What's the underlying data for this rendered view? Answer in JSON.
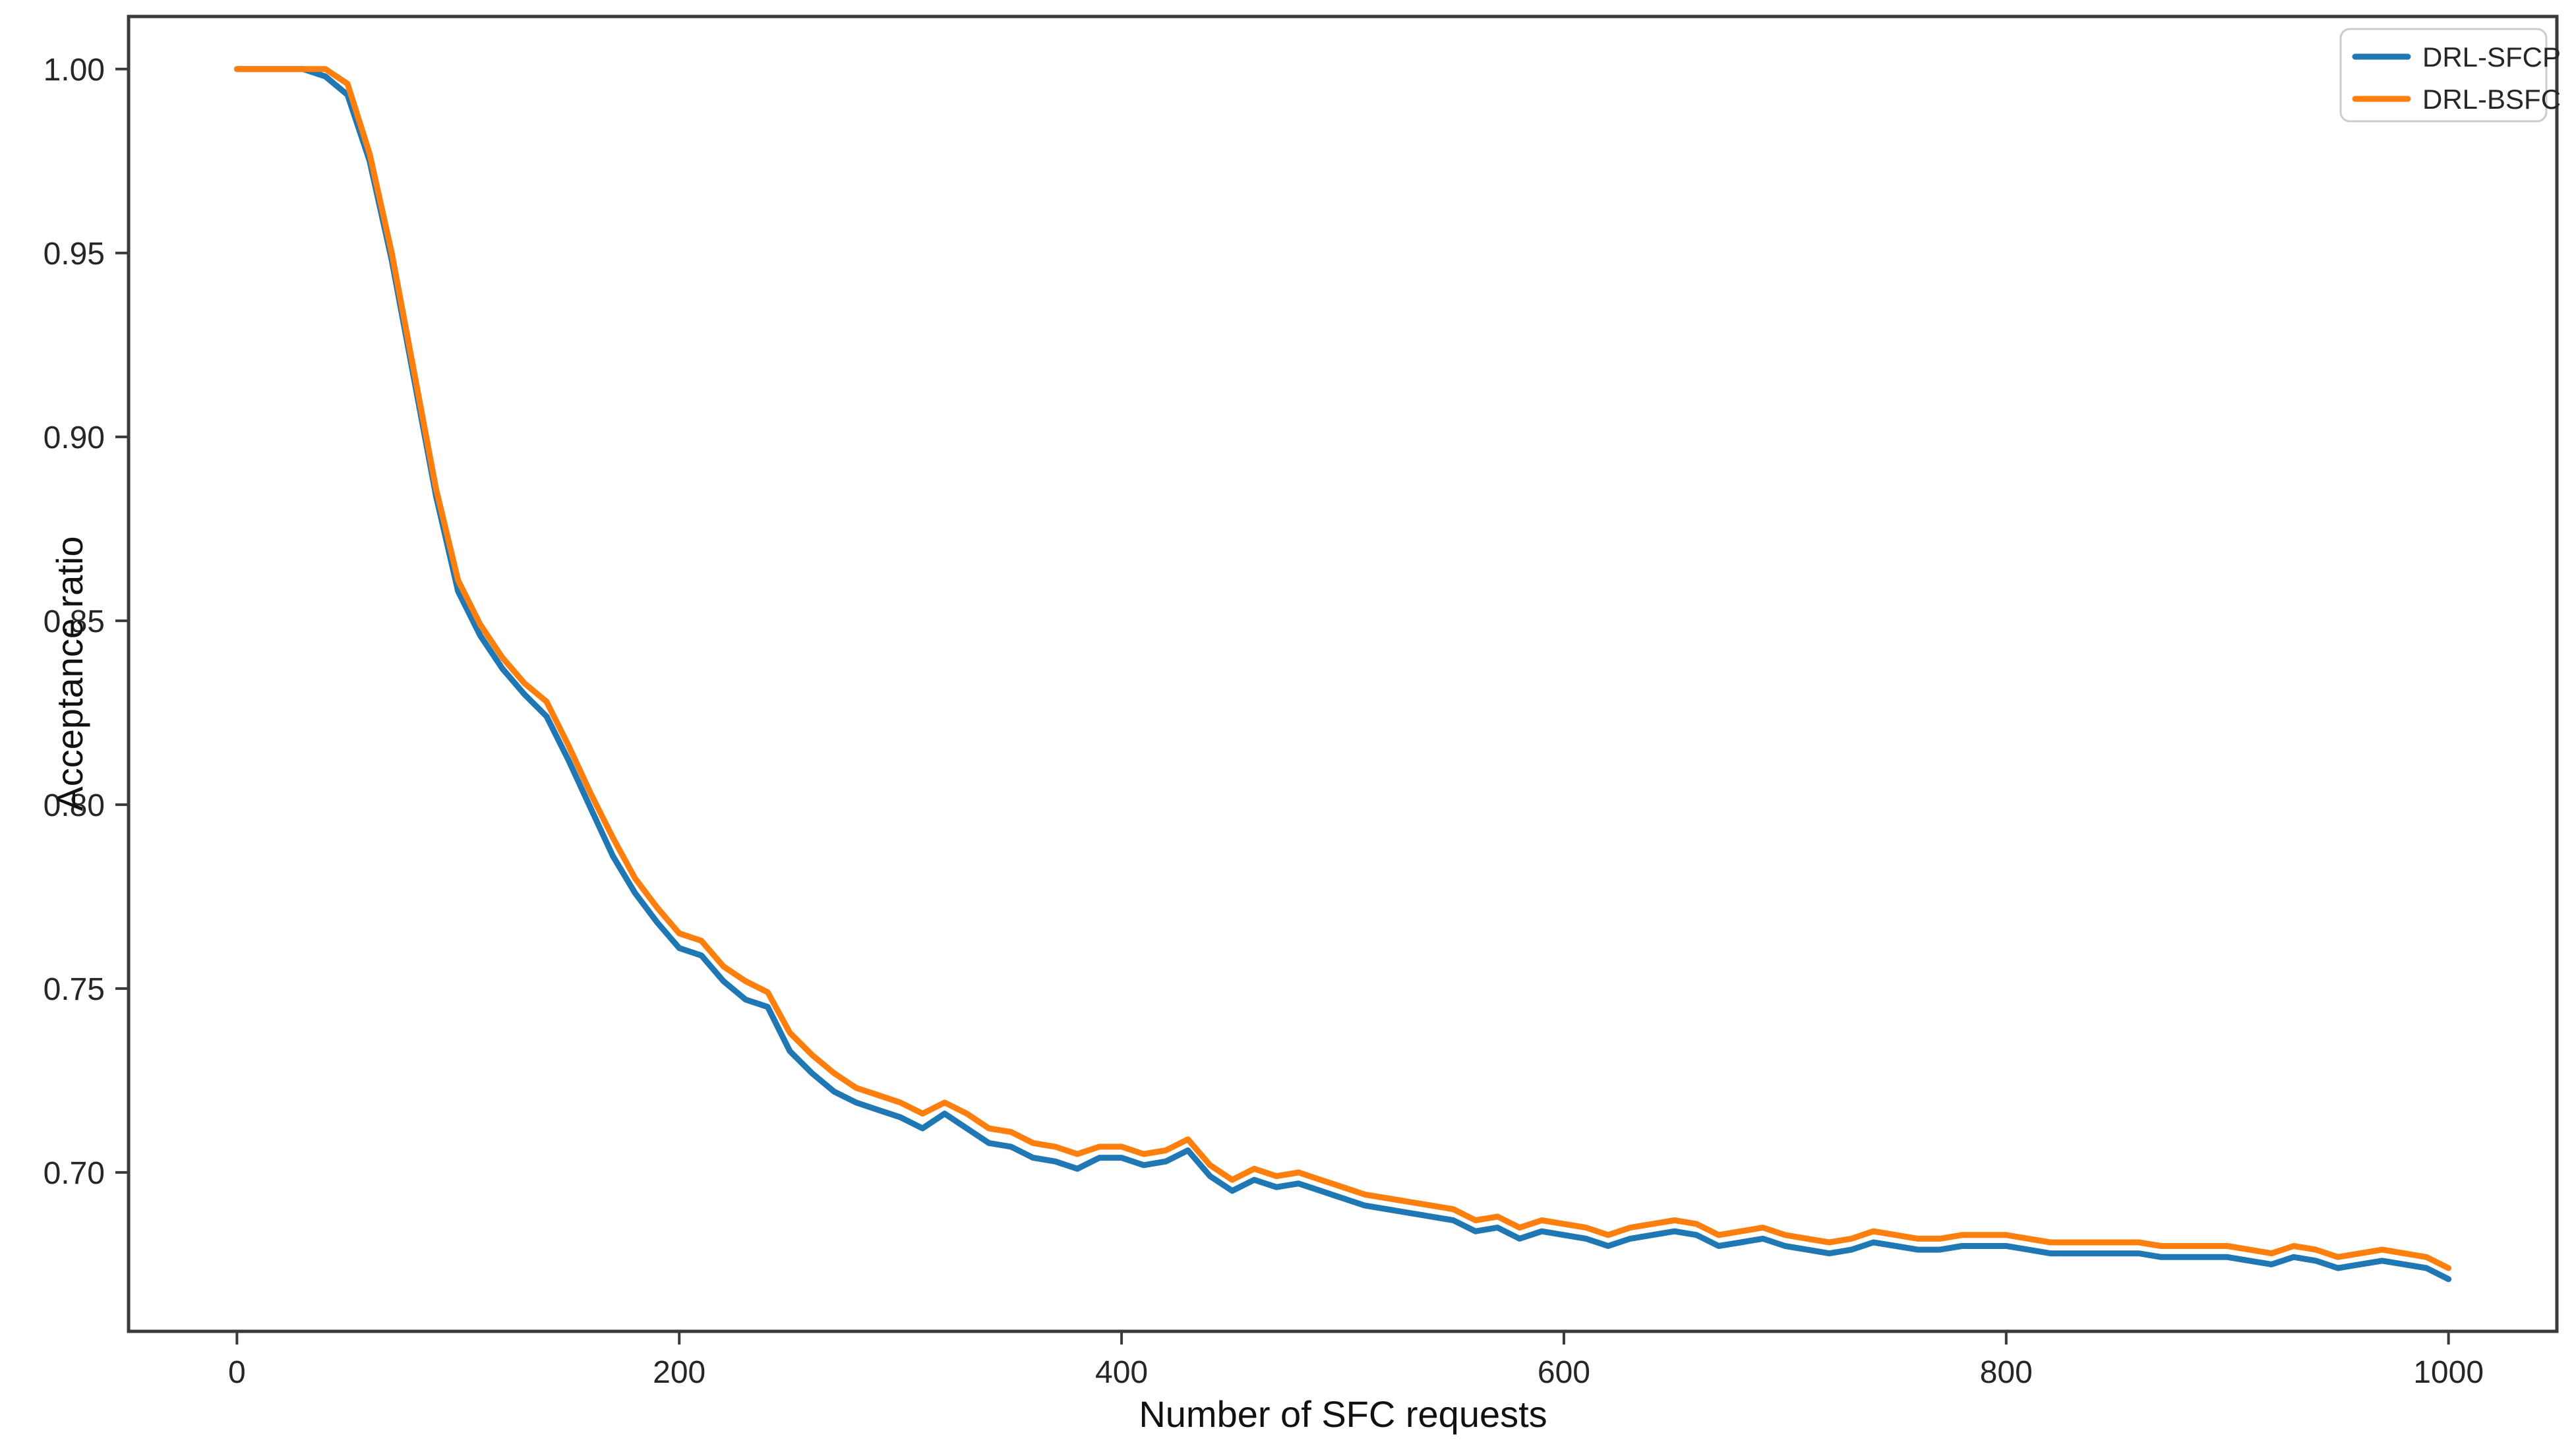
{
  "chart_data": {
    "type": "line",
    "title": "",
    "xlabel": "Number of SFC requests",
    "ylabel": "Acceptance ratio",
    "xlim": [
      -49,
      1049
    ],
    "ylim": [
      0.6568,
      1.0143
    ],
    "x_ticks": [
      0,
      200,
      400,
      600,
      800,
      1000
    ],
    "x_tick_labels": [
      "0",
      "200",
      "400",
      "600",
      "800",
      "1000"
    ],
    "y_ticks": [
      1.0,
      0.95,
      0.9,
      0.85,
      0.8,
      0.75,
      0.7
    ],
    "y_tick_labels": [
      "1.00",
      "0.95",
      "0.90",
      "0.85",
      "0.80",
      "0.75",
      "0.70"
    ],
    "grid": false,
    "legend_position": "upper right",
    "x_start": 0,
    "x_step": 10,
    "series": [
      {
        "name": "DRL-SFCP",
        "color": "#1f77b4",
        "values": [
          1.0,
          1.0,
          1.0,
          1.0,
          0.998,
          0.993,
          0.975,
          0.948,
          0.916,
          0.884,
          0.858,
          0.846,
          0.837,
          0.83,
          0.824,
          0.812,
          0.799,
          0.786,
          0.776,
          0.768,
          0.761,
          0.759,
          0.752,
          0.747,
          0.745,
          0.733,
          0.727,
          0.722,
          0.719,
          0.717,
          0.715,
          0.712,
          0.716,
          0.712,
          0.708,
          0.707,
          0.704,
          0.703,
          0.701,
          0.704,
          0.704,
          0.702,
          0.703,
          0.706,
          0.699,
          0.695,
          0.698,
          0.696,
          0.697,
          0.695,
          0.693,
          0.691,
          0.69,
          0.689,
          0.688,
          0.687,
          0.684,
          0.685,
          0.682,
          0.684,
          0.683,
          0.682,
          0.68,
          0.682,
          0.683,
          0.684,
          0.683,
          0.68,
          0.681,
          0.682,
          0.68,
          0.679,
          0.678,
          0.679,
          0.681,
          0.68,
          0.679,
          0.679,
          0.68,
          0.68,
          0.68,
          0.679,
          0.678,
          0.678,
          0.678,
          0.678,
          0.678,
          0.677,
          0.677,
          0.677,
          0.677,
          0.676,
          0.675,
          0.677,
          0.676,
          0.674,
          0.675,
          0.676,
          0.675,
          0.674,
          0.671
        ]
      },
      {
        "name": "DRL-BSFC",
        "color": "#ff7f0e",
        "values": [
          1.0,
          1.0,
          1.0,
          1.0,
          1.0,
          0.996,
          0.977,
          0.95,
          0.918,
          0.886,
          0.861,
          0.849,
          0.84,
          0.833,
          0.828,
          0.816,
          0.803,
          0.791,
          0.78,
          0.772,
          0.765,
          0.763,
          0.756,
          0.752,
          0.749,
          0.738,
          0.732,
          0.727,
          0.723,
          0.721,
          0.719,
          0.716,
          0.719,
          0.716,
          0.712,
          0.711,
          0.708,
          0.707,
          0.705,
          0.707,
          0.707,
          0.705,
          0.706,
          0.709,
          0.702,
          0.698,
          0.701,
          0.699,
          0.7,
          0.698,
          0.696,
          0.694,
          0.693,
          0.692,
          0.691,
          0.69,
          0.687,
          0.688,
          0.685,
          0.687,
          0.686,
          0.685,
          0.683,
          0.685,
          0.686,
          0.687,
          0.686,
          0.683,
          0.684,
          0.685,
          0.683,
          0.682,
          0.681,
          0.682,
          0.684,
          0.683,
          0.682,
          0.682,
          0.683,
          0.683,
          0.683,
          0.682,
          0.681,
          0.681,
          0.681,
          0.681,
          0.681,
          0.68,
          0.68,
          0.68,
          0.68,
          0.679,
          0.678,
          0.68,
          0.679,
          0.677,
          0.678,
          0.679,
          0.678,
          0.677,
          0.674
        ]
      }
    ]
  },
  "colors": {
    "spine": "#3a3a3a",
    "tick_text": "#262626",
    "legend_border": "#cccccc",
    "background": "#ffffff"
  }
}
